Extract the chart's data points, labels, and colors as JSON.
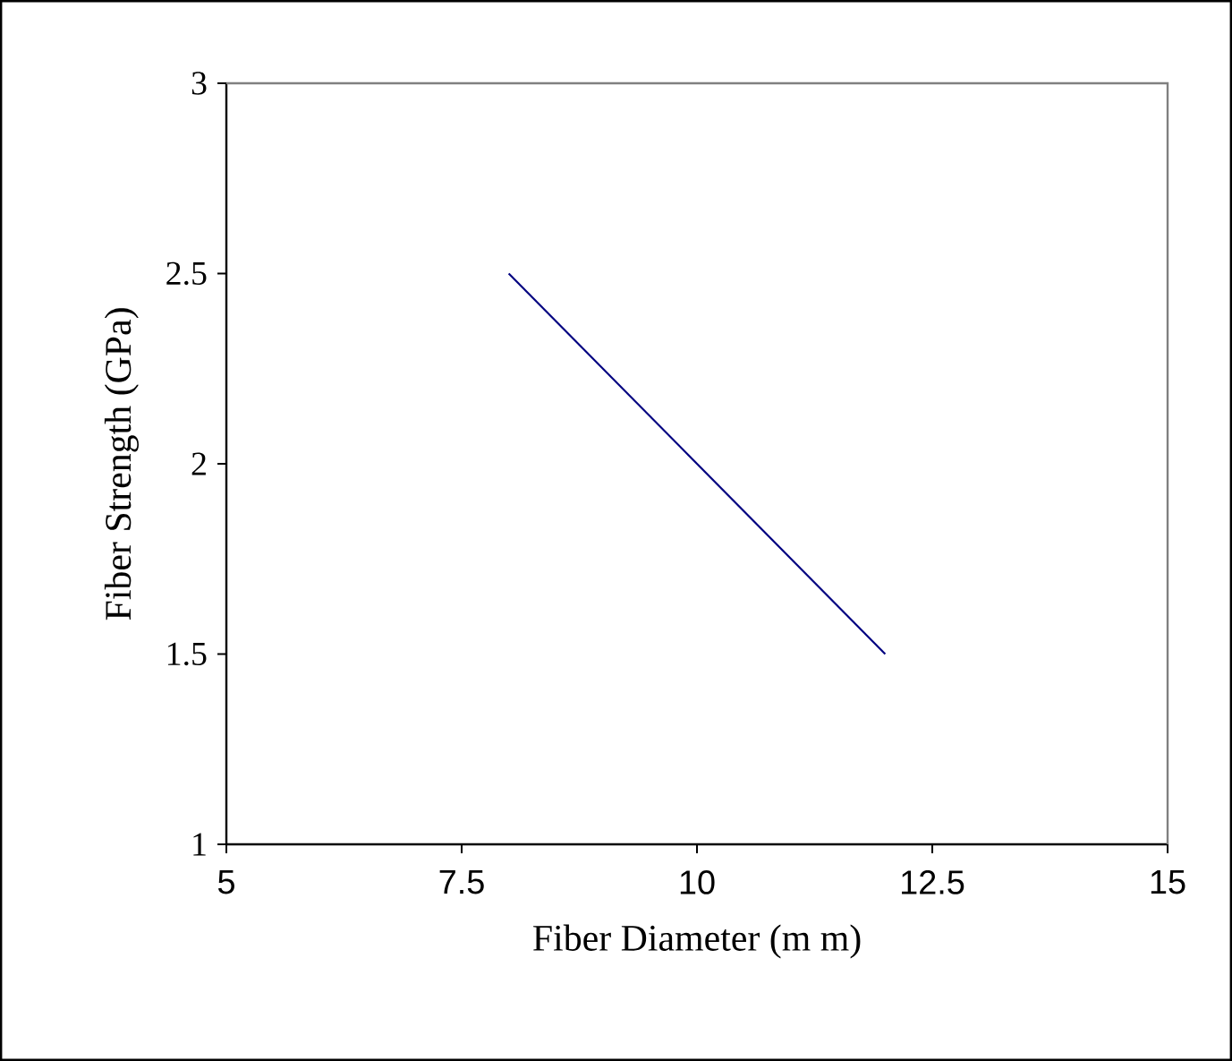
{
  "chart_data": {
    "type": "line",
    "xlabel": "Fiber Diameter (m m)",
    "ylabel": "Fiber Strength (GPa)",
    "x": [
      8,
      12
    ],
    "series": [
      {
        "color": "#000080",
        "values": [
          2.5,
          1.5
        ]
      }
    ],
    "xlim": [
      5,
      15
    ],
    "xticks": [
      5,
      7.5,
      10,
      12.5,
      15
    ],
    "ylim": [
      1,
      3
    ],
    "yticks": [
      1,
      1.5,
      2,
      2.5,
      3
    ],
    "grid": false,
    "marker": "none",
    "line_style": "solid"
  }
}
